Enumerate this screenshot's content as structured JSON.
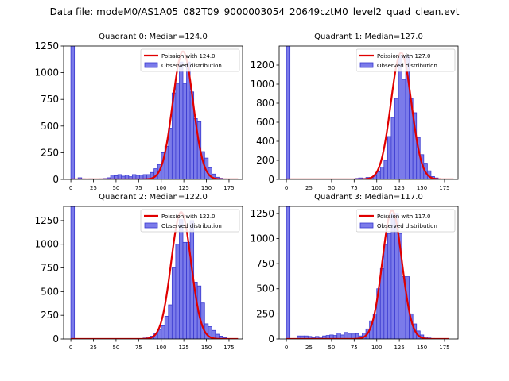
{
  "figure": {
    "title": "Data file: modeM0/AS1A05_082T09_9000003054_20649cztM0_level2_quad_clean.evt"
  },
  "colors": {
    "bar_fill": "#7b7bea",
    "bar_edge": "#3a3ad0",
    "poisson_line": "#e00000"
  },
  "chart_data": [
    {
      "type": "bar",
      "title": "Quadrant 0: Median=124.0",
      "xlim": [
        -8,
        190
      ],
      "ylim": [
        0,
        1250
      ],
      "xticks": [
        0,
        25,
        50,
        75,
        100,
        125,
        150,
        175
      ],
      "yticks": [
        0,
        250,
        500,
        750,
        1000,
        1250
      ],
      "bin_width": 4,
      "bins": [
        [
          0,
          1250
        ],
        [
          8,
          15
        ],
        [
          12,
          5
        ],
        [
          20,
          5
        ],
        [
          28,
          3
        ],
        [
          32,
          5
        ],
        [
          36,
          8
        ],
        [
          40,
          15
        ],
        [
          44,
          40
        ],
        [
          48,
          35
        ],
        [
          52,
          45
        ],
        [
          56,
          30
        ],
        [
          60,
          40
        ],
        [
          64,
          25
        ],
        [
          68,
          45
        ],
        [
          72,
          38
        ],
        [
          76,
          40
        ],
        [
          80,
          45
        ],
        [
          84,
          45
        ],
        [
          88,
          65
        ],
        [
          92,
          100
        ],
        [
          96,
          140
        ],
        [
          100,
          250
        ],
        [
          104,
          310
        ],
        [
          108,
          480
        ],
        [
          112,
          810
        ],
        [
          116,
          900
        ],
        [
          120,
          1100
        ],
        [
          124,
          900
        ],
        [
          128,
          1100
        ],
        [
          132,
          820
        ],
        [
          136,
          570
        ],
        [
          140,
          540
        ],
        [
          144,
          260
        ],
        [
          148,
          200
        ],
        [
          152,
          110
        ],
        [
          156,
          50
        ],
        [
          160,
          20
        ],
        [
          164,
          10
        ],
        [
          168,
          5
        ]
      ],
      "poisson_mean": 124.0,
      "poisson_peak": 1200,
      "poisson_sigma": 11.2,
      "poisson_xrange": [
        0,
        185
      ],
      "legend": {
        "line": "Poission with 124.0",
        "bars": "Observed distribution",
        "position": "upper right"
      }
    },
    {
      "type": "bar",
      "title": "Quadrant 1: Median=127.0",
      "xlim": [
        -8,
        190
      ],
      "ylim": [
        0,
        1400
      ],
      "xticks": [
        0,
        25,
        50,
        75,
        100,
        125,
        150,
        175
      ],
      "yticks": [
        0,
        200,
        400,
        600,
        800,
        1000,
        1200
      ],
      "bin_width": 4,
      "bins": [
        [
          0,
          1400
        ],
        [
          56,
          3
        ],
        [
          60,
          5
        ],
        [
          64,
          5
        ],
        [
          68,
          3
        ],
        [
          72,
          5
        ],
        [
          76,
          10
        ],
        [
          80,
          15
        ],
        [
          84,
          10
        ],
        [
          88,
          20
        ],
        [
          92,
          20
        ],
        [
          96,
          40
        ],
        [
          100,
          80
        ],
        [
          104,
          130
        ],
        [
          108,
          200
        ],
        [
          112,
          450
        ],
        [
          116,
          650
        ],
        [
          120,
          850
        ],
        [
          124,
          1300
        ],
        [
          128,
          1050
        ],
        [
          132,
          1300
        ],
        [
          136,
          850
        ],
        [
          140,
          700
        ],
        [
          144,
          440
        ],
        [
          148,
          260
        ],
        [
          152,
          170
        ],
        [
          156,
          90
        ],
        [
          160,
          30
        ],
        [
          164,
          15
        ],
        [
          168,
          5
        ]
      ],
      "poisson_mean": 127.0,
      "poisson_peak": 1330,
      "poisson_sigma": 11.3,
      "poisson_xrange": [
        0,
        185
      ],
      "legend": {
        "line": "Poission with 127.0",
        "bars": "Observed distribution",
        "position": "upper right"
      }
    },
    {
      "type": "bar",
      "title": "Quadrant 2: Median=122.0",
      "xlim": [
        -8,
        190
      ],
      "ylim": [
        0,
        1400
      ],
      "xticks": [
        0,
        25,
        50,
        75,
        100,
        125,
        150,
        175
      ],
      "yticks": [
        0,
        250,
        500,
        750,
        1000,
        1250
      ],
      "bin_width": 4,
      "bins": [
        [
          0,
          1400
        ],
        [
          68,
          3
        ],
        [
          72,
          5
        ],
        [
          76,
          5
        ],
        [
          80,
          10
        ],
        [
          84,
          20
        ],
        [
          88,
          30
        ],
        [
          92,
          60
        ],
        [
          96,
          100
        ],
        [
          100,
          140
        ],
        [
          104,
          240
        ],
        [
          108,
          360
        ],
        [
          112,
          750
        ],
        [
          116,
          1000
        ],
        [
          120,
          1260
        ],
        [
          124,
          1020
        ],
        [
          128,
          1020
        ],
        [
          132,
          1250
        ],
        [
          136,
          600
        ],
        [
          140,
          560
        ],
        [
          144,
          380
        ],
        [
          148,
          160
        ],
        [
          152,
          130
        ],
        [
          156,
          90
        ],
        [
          160,
          50
        ],
        [
          164,
          30
        ],
        [
          168,
          15
        ],
        [
          172,
          5
        ]
      ],
      "poisson_mean": 122.0,
      "poisson_peak": 1340,
      "poisson_sigma": 11.0,
      "poisson_xrange": [
        0,
        185
      ],
      "legend": {
        "line": "Poission with 122.0",
        "bars": "Observed distribution",
        "position": "upper right"
      }
    },
    {
      "type": "bar",
      "title": "Quadrant 3: Median=117.0",
      "xlim": [
        -8,
        190
      ],
      "ylim": [
        0,
        1320
      ],
      "xticks": [
        0,
        25,
        50,
        75,
        100,
        125,
        150,
        175
      ],
      "yticks": [
        0,
        250,
        500,
        750,
        1000,
        1250
      ],
      "bin_width": 4,
      "bins": [
        [
          0,
          1320
        ],
        [
          8,
          5
        ],
        [
          12,
          30
        ],
        [
          16,
          30
        ],
        [
          20,
          30
        ],
        [
          24,
          25
        ],
        [
          28,
          15
        ],
        [
          32,
          25
        ],
        [
          36,
          20
        ],
        [
          40,
          30
        ],
        [
          44,
          35
        ],
        [
          48,
          40
        ],
        [
          52,
          35
        ],
        [
          56,
          60
        ],
        [
          60,
          40
        ],
        [
          64,
          65
        ],
        [
          68,
          50
        ],
        [
          72,
          50
        ],
        [
          76,
          55
        ],
        [
          80,
          30
        ],
        [
          84,
          60
        ],
        [
          88,
          100
        ],
        [
          92,
          180
        ],
        [
          96,
          250
        ],
        [
          100,
          500
        ],
        [
          104,
          700
        ],
        [
          108,
          940
        ],
        [
          112,
          1050
        ],
        [
          116,
          1250
        ],
        [
          120,
          1250
        ],
        [
          124,
          1050
        ],
        [
          128,
          620
        ],
        [
          132,
          620
        ],
        [
          136,
          250
        ],
        [
          140,
          150
        ],
        [
          144,
          80
        ],
        [
          148,
          40
        ],
        [
          152,
          20
        ],
        [
          156,
          10
        ],
        [
          160,
          5
        ]
      ],
      "poisson_mean": 117.0,
      "poisson_peak": 1280,
      "poisson_sigma": 10.8,
      "poisson_xrange": [
        0,
        180
      ],
      "legend": {
        "line": "Poission with 117.0",
        "bars": "Observed distribution",
        "position": "upper right"
      }
    }
  ]
}
